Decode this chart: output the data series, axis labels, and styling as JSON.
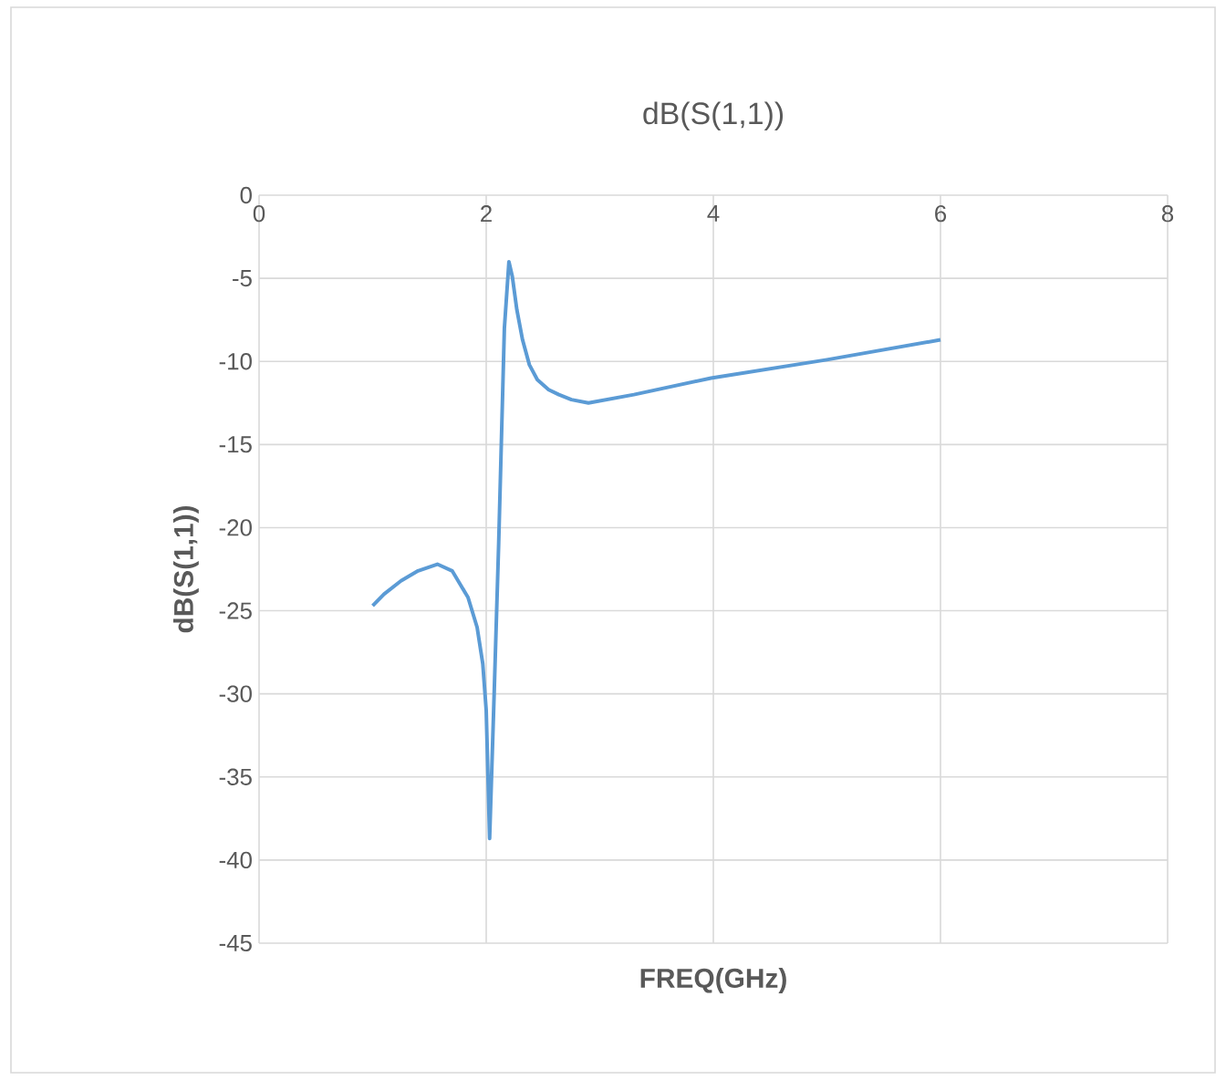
{
  "chart_data": {
    "type": "line",
    "title": "dB(S(1,1))",
    "xlabel": "FREQ(GHz)",
    "ylabel": "dB(S(1,1))",
    "x": [
      1.0,
      1.1,
      1.25,
      1.4,
      1.57,
      1.7,
      1.84,
      1.92,
      1.97,
      2.0,
      2.03,
      2.07,
      2.11,
      2.16,
      2.2,
      2.23,
      2.27,
      2.32,
      2.38,
      2.45,
      2.55,
      2.64,
      2.75,
      2.9,
      3.3,
      3.98,
      5.0,
      6.0
    ],
    "series": [
      {
        "color": "#5b9bd5",
        "values": [
          -24.7,
          -24.0,
          -23.2,
          -22.6,
          -22.2,
          -22.6,
          -24.2,
          -26.0,
          -28.2,
          -31.0,
          -38.7,
          -30.0,
          -20.9,
          -8.0,
          -4.0,
          -4.9,
          -6.9,
          -8.7,
          -10.2,
          -11.1,
          -11.7,
          -12.0,
          -12.3,
          -12.5,
          -12.0,
          -11.0,
          -9.9,
          -8.7
        ]
      }
    ],
    "xlim": [
      0,
      8
    ],
    "ylim": [
      -45,
      0
    ],
    "xticks": [
      0,
      2,
      4,
      6,
      8
    ],
    "yticks": [
      -45,
      -40,
      -35,
      -30,
      -25,
      -20,
      -15,
      -10,
      -5,
      0
    ],
    "grid": true,
    "marker": "none",
    "line_style": "solid"
  }
}
